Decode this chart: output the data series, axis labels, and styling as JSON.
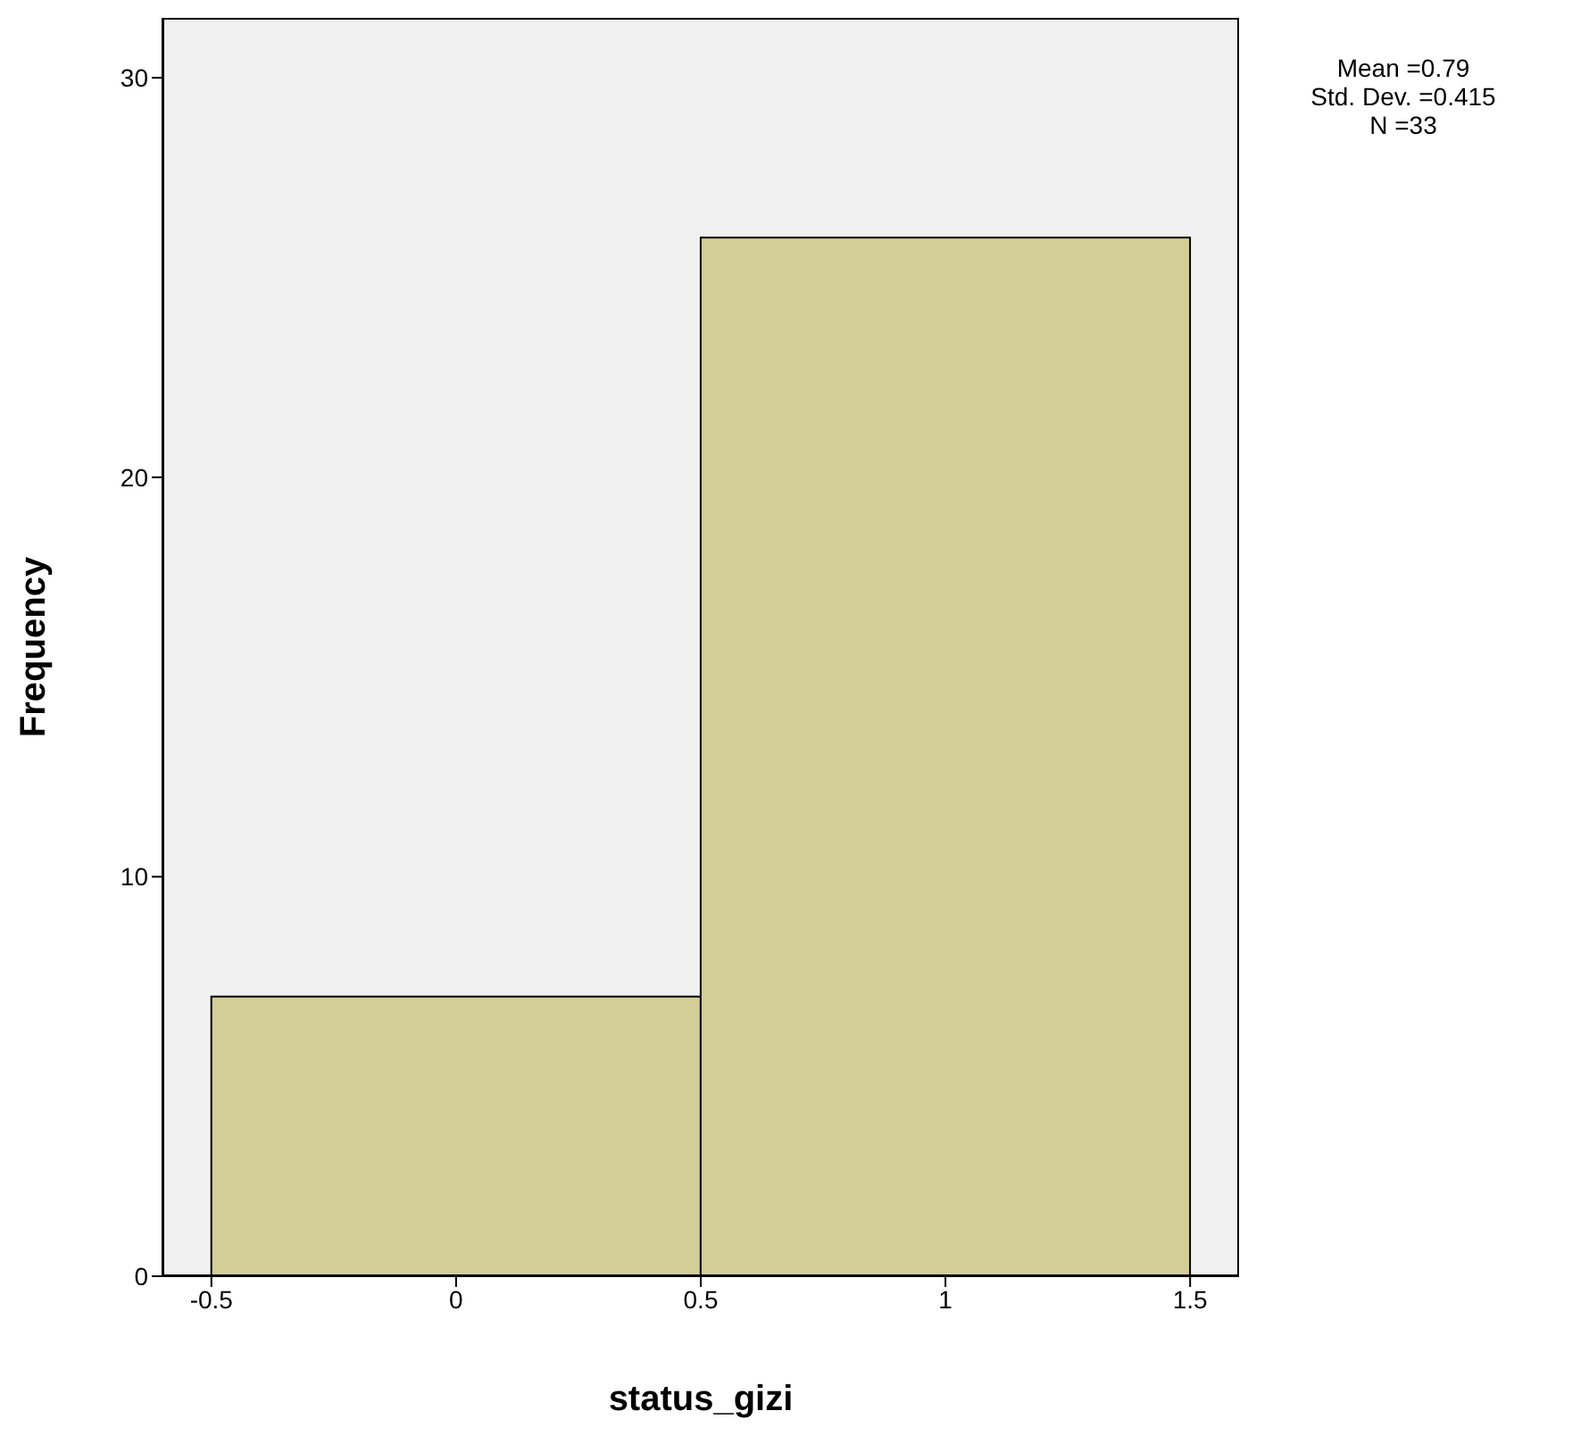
{
  "chart_data": {
    "type": "histogram",
    "xlabel": "status_gizi",
    "ylabel": "Frequency",
    "bins": [
      -0.5,
      0.5,
      1.5
    ],
    "values": [
      7,
      26
    ],
    "color": "#d3ce97",
    "xlim": [
      -0.6,
      1.6
    ],
    "xticks": [
      -0.5,
      0,
      0.5,
      1,
      1.5
    ],
    "ylim": [
      0,
      31.5
    ],
    "yticks": [
      0,
      10,
      20,
      30
    ],
    "grid": false,
    "annotations": [
      "Mean =0.79",
      "Std. Dev. =0.415",
      "N =33"
    ]
  }
}
